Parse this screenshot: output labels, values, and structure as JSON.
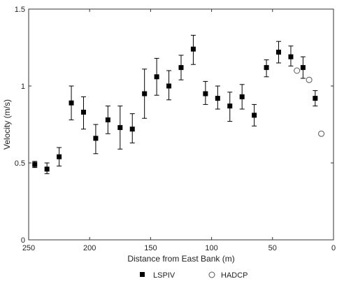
{
  "chart_data": {
    "type": "scatter",
    "xlabel": "Distance from East Bank (m)",
    "ylabel": "Velocity (m/s)",
    "xlim": [
      250,
      0
    ],
    "ylim": [
      0,
      1.5
    ],
    "x_ticks": [
      250,
      200,
      150,
      100,
      50,
      0
    ],
    "y_ticks": [
      0,
      0.5,
      1,
      1.5
    ],
    "x_tick_labels": [
      "250",
      "200",
      "150",
      "100",
      "50",
      "0"
    ],
    "y_tick_labels": [
      "0",
      "0.5",
      "1",
      "1.5"
    ],
    "grid": false,
    "legend_position": "bottom-center",
    "series": [
      {
        "name": "LSPIV",
        "marker": "filled-square",
        "color": "#000000",
        "points": [
          {
            "x": 245,
            "y": 0.49,
            "ylo": 0.47,
            "yhi": 0.51
          },
          {
            "x": 235,
            "y": 0.46,
            "ylo": 0.43,
            "yhi": 0.5
          },
          {
            "x": 225,
            "y": 0.54,
            "ylo": 0.48,
            "yhi": 0.6
          },
          {
            "x": 215,
            "y": 0.89,
            "ylo": 0.78,
            "yhi": 1.0
          },
          {
            "x": 205,
            "y": 0.83,
            "ylo": 0.72,
            "yhi": 0.93
          },
          {
            "x": 195,
            "y": 0.66,
            "ylo": 0.56,
            "yhi": 0.75
          },
          {
            "x": 185,
            "y": 0.78,
            "ylo": 0.69,
            "yhi": 0.87
          },
          {
            "x": 175,
            "y": 0.73,
            "ylo": 0.59,
            "yhi": 0.87
          },
          {
            "x": 165,
            "y": 0.72,
            "ylo": 0.63,
            "yhi": 0.82
          },
          {
            "x": 155,
            "y": 0.95,
            "ylo": 0.79,
            "yhi": 1.11
          },
          {
            "x": 145,
            "y": 1.06,
            "ylo": 0.94,
            "yhi": 1.18
          },
          {
            "x": 135,
            "y": 1.0,
            "ylo": 0.91,
            "yhi": 1.1
          },
          {
            "x": 125,
            "y": 1.12,
            "ylo": 1.04,
            "yhi": 1.2
          },
          {
            "x": 115,
            "y": 1.24,
            "ylo": 1.14,
            "yhi": 1.33
          },
          {
            "x": 105,
            "y": 0.95,
            "ylo": 0.88,
            "yhi": 1.03
          },
          {
            "x": 95,
            "y": 0.92,
            "ylo": 0.85,
            "yhi": 1.0
          },
          {
            "x": 85,
            "y": 0.87,
            "ylo": 0.77,
            "yhi": 0.96
          },
          {
            "x": 75,
            "y": 0.93,
            "ylo": 0.85,
            "yhi": 1.01
          },
          {
            "x": 65,
            "y": 0.81,
            "ylo": 0.74,
            "yhi": 0.88
          },
          {
            "x": 55,
            "y": 1.12,
            "ylo": 1.06,
            "yhi": 1.17
          },
          {
            "x": 45,
            "y": 1.22,
            "ylo": 1.15,
            "yhi": 1.29
          },
          {
            "x": 35,
            "y": 1.19,
            "ylo": 1.13,
            "yhi": 1.26
          },
          {
            "x": 25,
            "y": 1.12,
            "ylo": 1.05,
            "yhi": 1.19
          },
          {
            "x": 15,
            "y": 0.92,
            "ylo": 0.87,
            "yhi": 0.97
          }
        ]
      },
      {
        "name": "HADCP",
        "marker": "open-circle",
        "color": "#555555",
        "points": [
          {
            "x": 30,
            "y": 1.1
          },
          {
            "x": 20,
            "y": 1.04
          },
          {
            "x": 10,
            "y": 0.69
          }
        ]
      }
    ]
  }
}
